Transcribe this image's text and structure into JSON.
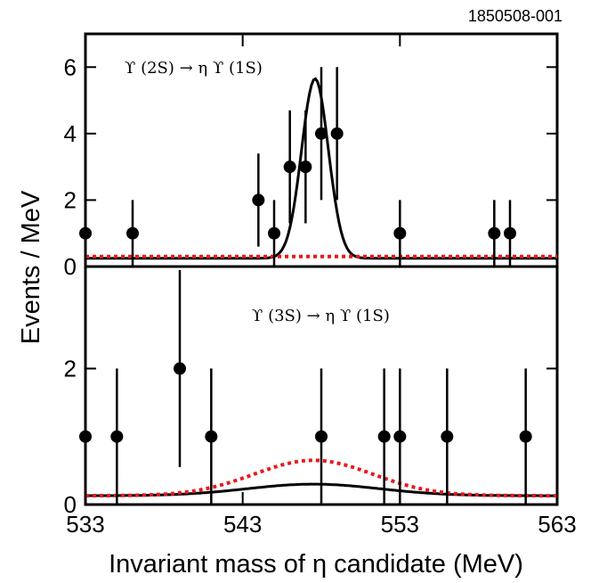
{
  "figure_id": "1850508-001",
  "chart_data": {
    "type": "scatter",
    "x_title": "Invariant mass of η candidate (MeV)",
    "y_title": "Events / MeV",
    "x_range": [
      533,
      563
    ],
    "x_ticks": [
      "533",
      "543",
      "553",
      "563"
    ],
    "grid": false,
    "panels": [
      {
        "label": "ϒ (2S) → η ϒ (1S)",
        "y_range": [
          0,
          7
        ],
        "y_ticks": [
          "0",
          "2",
          "4",
          "6"
        ],
        "points": [
          {
            "x": 533.0,
            "y": 1,
            "yerr_low": 1,
            "yerr_high": 1
          },
          {
            "x": 536.0,
            "y": 1,
            "yerr_low": 1,
            "yerr_high": 1
          },
          {
            "x": 544.0,
            "y": 2,
            "yerr_low": 1.4,
            "yerr_high": 1.4
          },
          {
            "x": 545.0,
            "y": 1,
            "yerr_low": 1,
            "yerr_high": 1
          },
          {
            "x": 546.0,
            "y": 3,
            "yerr_low": 1.7,
            "yerr_high": 1.7
          },
          {
            "x": 547.0,
            "y": 3,
            "yerr_low": 1.7,
            "yerr_high": 1.7
          },
          {
            "x": 548.0,
            "y": 4,
            "yerr_low": 2,
            "yerr_high": 2
          },
          {
            "x": 549.0,
            "y": 4,
            "yerr_low": 2,
            "yerr_high": 2
          },
          {
            "x": 553.0,
            "y": 1,
            "yerr_low": 1,
            "yerr_high": 1
          },
          {
            "x": 559.0,
            "y": 1,
            "yerr_low": 1,
            "yerr_high": 1
          },
          {
            "x": 560.0,
            "y": 1,
            "yerr_low": 1,
            "yerr_high": 1
          }
        ],
        "curves": [
          {
            "style": "solid",
            "color": "#000000",
            "baseline": 0.25,
            "peak_x": 547.6,
            "amplitude": 5.4,
            "sigma": 0.85
          },
          {
            "style": "dotted",
            "color": "#e8191e",
            "baseline": 0.3,
            "peak_x": 547.6,
            "amplitude": 0,
            "sigma": 1
          }
        ]
      },
      {
        "label": "ϒ (3S) → η ϒ (1S)",
        "y_range": [
          0,
          3.5
        ],
        "y_ticks": [
          "0",
          "2"
        ],
        "points": [
          {
            "x": 533.0,
            "y": 1,
            "yerr_low": 1,
            "yerr_high": 1
          },
          {
            "x": 535.0,
            "y": 1,
            "yerr_low": 1,
            "yerr_high": 1
          },
          {
            "x": 539.0,
            "y": 2,
            "yerr_low": 1.45,
            "yerr_high": 1.45
          },
          {
            "x": 541.0,
            "y": 1,
            "yerr_low": 1,
            "yerr_high": 1
          },
          {
            "x": 548.0,
            "y": 1,
            "yerr_low": 1,
            "yerr_high": 1
          },
          {
            "x": 552.0,
            "y": 1,
            "yerr_low": 1,
            "yerr_high": 1
          },
          {
            "x": 553.0,
            "y": 1,
            "yerr_low": 1,
            "yerr_high": 1
          },
          {
            "x": 556.0,
            "y": 1,
            "yerr_low": 1,
            "yerr_high": 1
          },
          {
            "x": 561.0,
            "y": 1,
            "yerr_low": 1,
            "yerr_high": 1
          }
        ],
        "curves": [
          {
            "style": "solid",
            "color": "#000000",
            "baseline": 0.13,
            "peak_x": 547.5,
            "amplitude": 0.17,
            "sigma": 4.2
          },
          {
            "style": "dotted",
            "color": "#e8191e",
            "baseline": 0.13,
            "peak_x": 547.5,
            "amplitude": 0.52,
            "sigma": 3.8
          }
        ]
      }
    ]
  }
}
